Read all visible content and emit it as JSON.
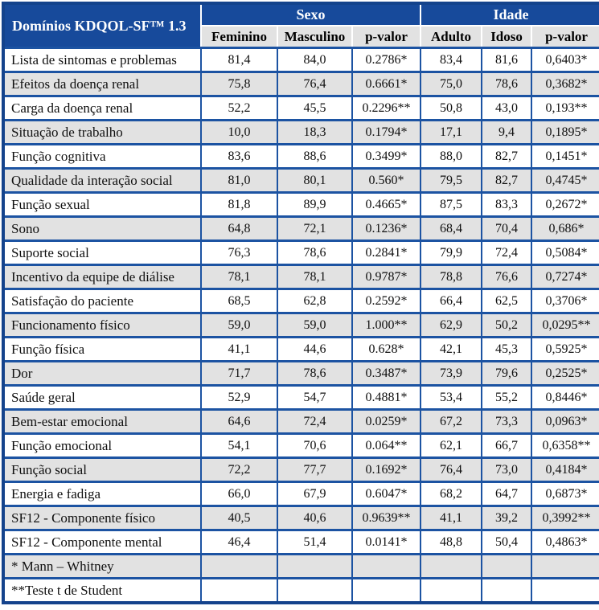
{
  "table": {
    "corner_header": "Domínios KDQOL-SF™ 1.3",
    "groups": [
      {
        "label": "Sexo"
      },
      {
        "label": "Idade"
      }
    ],
    "subheaders": [
      "Feminino",
      "Masculino",
      "p-valor",
      "Adulto",
      "Idoso",
      "p-valor"
    ],
    "rows": [
      {
        "domain": "Lista de sintomas e problemas",
        "values": [
          "81,4",
          "84,0",
          "0.2786*",
          "83,4",
          "81,6",
          "0,6403*"
        ]
      },
      {
        "domain": "Efeitos da doença renal",
        "values": [
          "75,8",
          "76,4",
          "0.6661*",
          "75,0",
          "78,6",
          "0,3682*"
        ]
      },
      {
        "domain": "Carga da doença renal",
        "values": [
          "52,2",
          "45,5",
          "0.2296**",
          "50,8",
          "43,0",
          "0,193**"
        ]
      },
      {
        "domain": "Situação de trabalho",
        "values": [
          "10,0",
          "18,3",
          "0.1794*",
          "17,1",
          "9,4",
          "0,1895*"
        ]
      },
      {
        "domain": "Função cognitiva",
        "values": [
          "83,6",
          "88,6",
          "0.3499*",
          "88,0",
          "82,7",
          "0,1451*"
        ]
      },
      {
        "domain": "Qualidade da interação social",
        "values": [
          "81,0",
          "80,1",
          "0.560*",
          "79,5",
          "82,7",
          "0,4745*"
        ]
      },
      {
        "domain": "Função sexual",
        "values": [
          "81,8",
          "89,9",
          "0.4665*",
          "87,5",
          "83,3",
          "0,2672*"
        ]
      },
      {
        "domain": "Sono",
        "values": [
          "64,8",
          "72,1",
          "0.1236*",
          "68,4",
          "70,4",
          "0,686*"
        ]
      },
      {
        "domain": "Suporte social",
        "values": [
          "76,3",
          "78,6",
          "0.2841*",
          "79,9",
          "72,4",
          "0,5084*"
        ]
      },
      {
        "domain": "Incentivo da equipe de diálise",
        "values": [
          "78,1",
          "78,1",
          "0.9787*",
          "78,8",
          "76,6",
          "0,7274*"
        ]
      },
      {
        "domain": "Satisfação do paciente",
        "values": [
          "68,5",
          "62,8",
          "0.2592*",
          "66,4",
          "62,5",
          "0,3706*"
        ]
      },
      {
        "domain": "Funcionamento físico",
        "values": [
          "59,0",
          "59,0",
          "1.000**",
          "62,9",
          "50,2",
          "0,0295**"
        ]
      },
      {
        "domain": "Função física",
        "values": [
          "41,1",
          "44,6",
          "0.628*",
          "42,1",
          "45,3",
          "0,5925*"
        ]
      },
      {
        "domain": "Dor",
        "values": [
          "71,7",
          "78,6",
          "0.3487*",
          "73,9",
          "79,6",
          "0,2525*"
        ]
      },
      {
        "domain": "Saúde geral",
        "values": [
          "52,9",
          "54,7",
          "0.4881*",
          "53,4",
          "55,2",
          "0,8446*"
        ]
      },
      {
        "domain": "Bem-estar emocional",
        "values": [
          "64,6",
          "72,4",
          "0.0259*",
          "67,2",
          "73,3",
          "0,0963*"
        ]
      },
      {
        "domain": "Função emocional",
        "values": [
          "54,1",
          "70,6",
          "0.064**",
          "62,1",
          "66,7",
          "0,6358**"
        ]
      },
      {
        "domain": "Função social",
        "values": [
          "72,2",
          "77,7",
          "0.1692*",
          "76,4",
          "73,0",
          "0,4184*"
        ]
      },
      {
        "domain": "Energia e fadiga",
        "values": [
          "66,0",
          "67,9",
          "0.6047*",
          "68,2",
          "64,7",
          "0,6873*"
        ]
      },
      {
        "domain": "SF12 - Componente físico",
        "values": [
          "40,5",
          "40,6",
          "0.9639**",
          "41,1",
          "39,2",
          "0,3992**"
        ]
      },
      {
        "domain": "SF12 - Componente mental",
        "values": [
          "46,4",
          "51,4",
          "0.0141*",
          "48,8",
          "50,4",
          "0,4863*"
        ]
      },
      {
        "domain": "* Mann – Whitney",
        "values": [
          "",
          "",
          "",
          "",
          "",
          ""
        ]
      },
      {
        "domain": "**Teste t de Student",
        "values": [
          "",
          "",
          "",
          "",
          "",
          ""
        ]
      }
    ],
    "colors": {
      "header_blue": "#174A9B",
      "grid_blue": "#1C53A2",
      "outer_border_blue": "#14438C",
      "row_alt_gray": "#E2E2E2"
    }
  }
}
